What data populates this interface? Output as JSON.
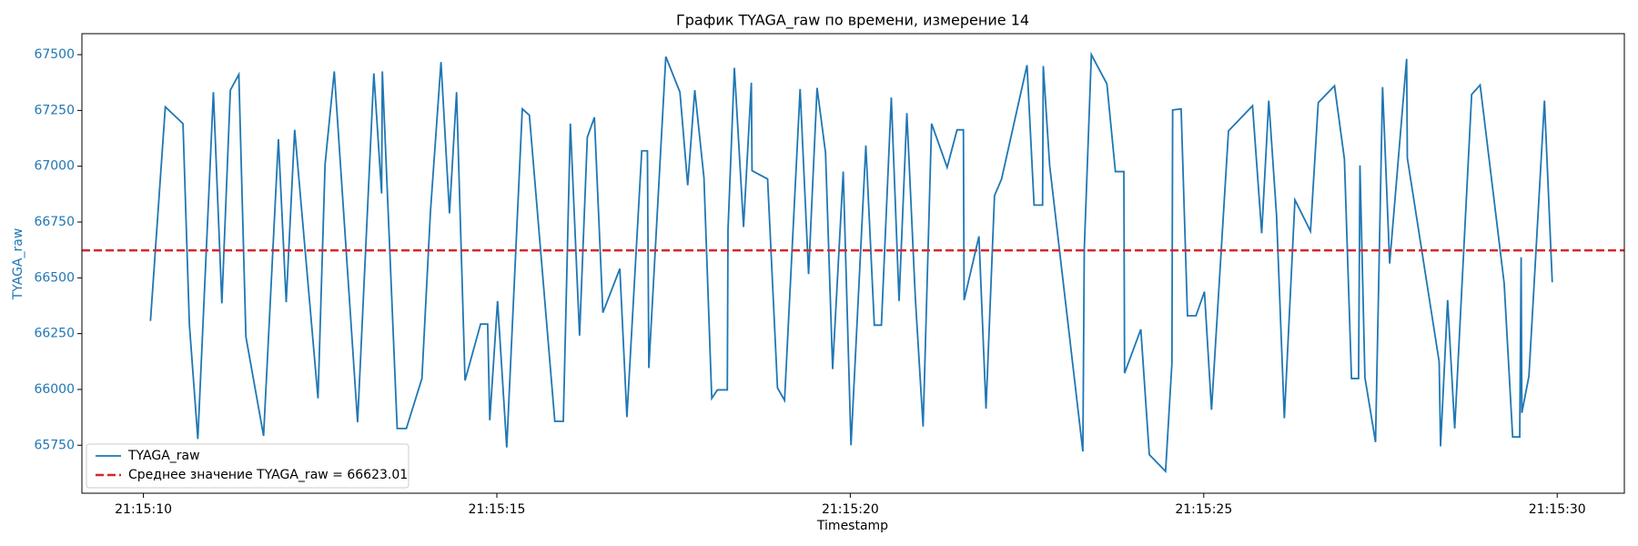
{
  "chart_data": {
    "type": "line",
    "title": "График TYAGA_raw по времени, измерение 14",
    "x_label": "Timestamp",
    "y_label": "TYAGA_raw",
    "x": [
      76510.1,
      76510.31,
      76510.56,
      76510.65,
      76510.77,
      76510.99,
      76511.11,
      76511.23,
      76511.35,
      76511.45,
      76511.7,
      76511.91,
      76512.02,
      76512.14,
      76512.47,
      76512.57,
      76512.7,
      76513.03,
      76513.26,
      76513.37,
      76513.38,
      76513.59,
      76513.72,
      76513.94,
      76514.06,
      76514.21,
      76514.33,
      76514.43,
      76514.55,
      76514.77,
      76514.87,
      76514.9,
      76515.01,
      76515.14,
      76515.36,
      76515.46,
      76515.82,
      76515.94,
      76516.04,
      76516.17,
      76516.28,
      76516.38,
      76516.5,
      76516.74,
      76516.84,
      76517.05,
      76517.13,
      76517.15,
      76517.39,
      76517.59,
      76517.7,
      76517.8,
      76517.93,
      76518.04,
      76518.12,
      76518.26,
      76518.27,
      76518.36,
      76518.49,
      76518.6,
      76518.61,
      76518.83,
      76518.97,
      76519.07,
      76519.29,
      76519.41,
      76519.53,
      76519.65,
      76519.75,
      76519.9,
      76520.01,
      76520.22,
      76520.34,
      76520.44,
      76520.58,
      76520.69,
      76520.8,
      76520.92,
      76521.03,
      76521.15,
      76521.37,
      76521.51,
      76521.6,
      76521.61,
      76521.82,
      76521.92,
      76522.04,
      76522.14,
      76522.5,
      76522.6,
      76522.72,
      76522.73,
      76522.82,
      76523.29,
      76523.31,
      76523.41,
      76523.63,
      76523.75,
      76523.87,
      76523.88,
      76524.11,
      76524.23,
      76524.46,
      76524.55,
      76524.56,
      76524.68,
      76524.77,
      76524.89,
      76525.01,
      76525.11,
      76525.35,
      76525.69,
      76525.82,
      76525.92,
      76526.03,
      76526.14,
      76526.29,
      76526.51,
      76526.62,
      76526.85,
      76526.99,
      76527.09,
      76527.19,
      76527.21,
      76527.28,
      76527.43,
      76527.53,
      76527.63,
      76527.87,
      76527.88,
      76528.33,
      76528.35,
      76528.45,
      76528.55,
      76528.79,
      76528.91,
      76529.25,
      76529.37,
      76529.47,
      76529.49,
      76529.5,
      76529.6,
      76529.82,
      76529.93
    ],
    "series": [
      {
        "name": "TYAGA_raw",
        "color": "#1f77b4",
        "values": [
          66307,
          67266,
          67191,
          66293,
          65778,
          67332,
          66386,
          67341,
          67411,
          66236,
          65792,
          67121,
          66391,
          67163,
          65960,
          67009,
          67425,
          65853,
          67416,
          66878,
          67425,
          65825,
          65825,
          66049,
          66793,
          67467,
          66789,
          67332,
          66040,
          66293,
          66293,
          65862,
          66396,
          65740,
          67257,
          67229,
          65857,
          65857,
          67191,
          66241,
          67130,
          67219,
          66344,
          66541,
          65876,
          67069,
          67069,
          66096,
          67491,
          67332,
          66915,
          67341,
          66948,
          65960,
          65998,
          65998,
          66714,
          67441,
          66728,
          67374,
          66980,
          66943,
          66007,
          65951,
          67346,
          66517,
          67351,
          67060,
          66091,
          66976,
          65750,
          67093,
          66288,
          66288,
          67308,
          66396,
          67238,
          66410,
          65834,
          67191,
          66995,
          67163,
          67163,
          66400,
          66686,
          65914,
          66868,
          66943,
          67453,
          66826,
          66826,
          67449,
          67004,
          65722,
          66630,
          67500,
          67369,
          66976,
          66976,
          66073,
          66269,
          65708,
          65633,
          66119,
          67252,
          67257,
          66330,
          66330,
          66438,
          65909,
          67158,
          67271,
          66700,
          67294,
          66779,
          65871,
          66849,
          66709,
          67285,
          67360,
          67032,
          66049,
          66049,
          67004,
          66054,
          65764,
          67355,
          66564,
          67481,
          67037,
          66124,
          65745,
          66400,
          65825,
          67322,
          67364,
          66475,
          65787,
          65787,
          66592,
          65895,
          66059,
          67294,
          66480
        ]
      }
    ],
    "mean_line": {
      "name": "Среднее значение TYAGA_raw = 66623.01",
      "value": 66623.01,
      "color": "#d62728"
    },
    "xlim": [
      76509.13,
      76530.95
    ],
    "xticks": [
      {
        "value": 76510,
        "label": "21:15:10"
      },
      {
        "value": 76515,
        "label": "21:15:15"
      },
      {
        "value": 76520,
        "label": "21:15:20"
      },
      {
        "value": 76525,
        "label": "21:15:25"
      },
      {
        "value": 76530,
        "label": "21:15:30"
      }
    ],
    "ylim": [
      65535,
      67594
    ],
    "yticks": [
      65750,
      66000,
      66250,
      66500,
      66750,
      67000,
      67250,
      67500
    ],
    "y_axis_color": "#1f77b4",
    "legend": "lower left"
  }
}
